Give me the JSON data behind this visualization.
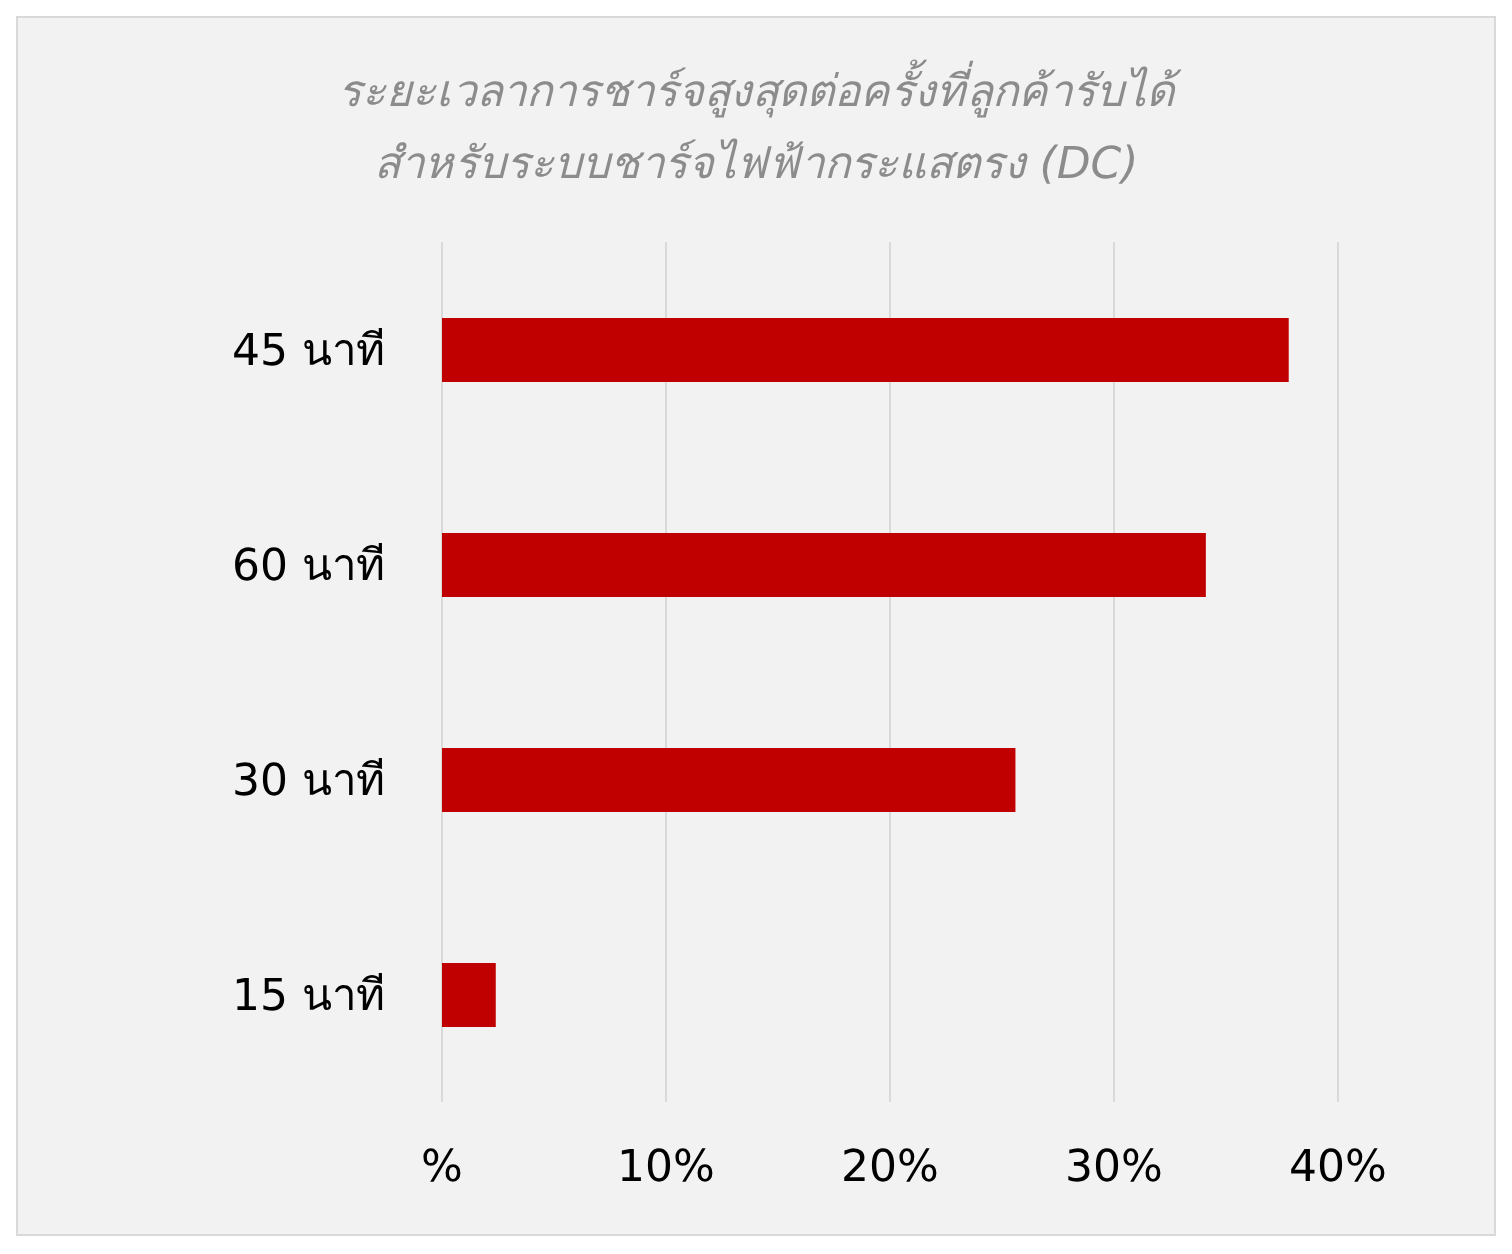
{
  "chart_data": {
    "type": "bar",
    "orientation": "horizontal",
    "title": "ระยะเวลาการชาร์จสูงสุดต่อครั้งที่ลูกค้ารับได้",
    "subtitle": "สำหรับระบบชาร์จไฟฟ้ากระแสตรง (DC)",
    "categories": [
      "45 นาที",
      "60 นาที",
      "30 นาที",
      "15 นาที"
    ],
    "values": [
      37.8,
      34.1,
      25.6,
      2.4
    ],
    "color": "#c00000",
    "xlim": [
      0,
      40
    ],
    "xticks": [
      {
        "value": 0,
        "label": "%"
      },
      {
        "value": 10,
        "label": "10%"
      },
      {
        "value": 20,
        "label": "20%"
      },
      {
        "value": 30,
        "label": "30%"
      },
      {
        "value": 40,
        "label": "40%"
      }
    ],
    "grid": "x",
    "legend": false
  }
}
